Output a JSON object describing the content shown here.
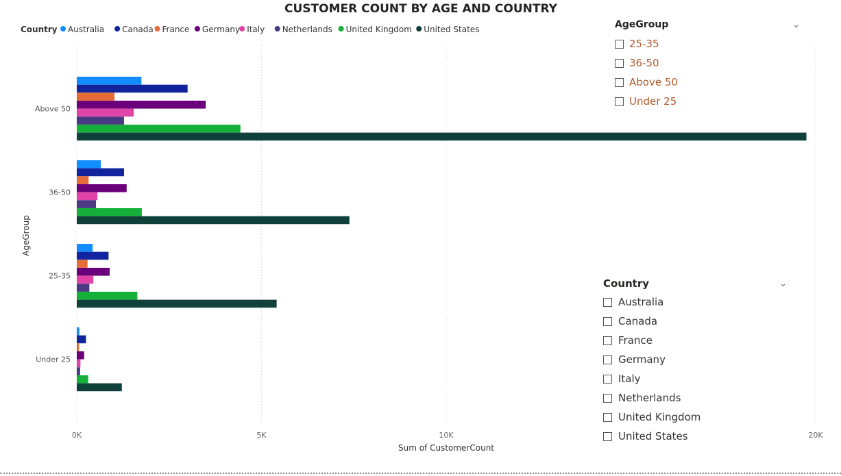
{
  "chart_data": {
    "type": "bar",
    "orientation": "horizontal",
    "title": "CUSTOMER COUNT BY AGE AND COUNTRY",
    "legend_title": "Country",
    "legend_position": "top-left",
    "xlabel": "Sum of CustomerCount",
    "ylabel": "AgeGroup",
    "categories": [
      "Above 50",
      "36-50",
      "25-35",
      "Under 25"
    ],
    "x_ticks": [
      "0K",
      "5K",
      "10K",
      "20K"
    ],
    "x_tick_values": [
      0,
      5000,
      10000,
      20000
    ],
    "xlim": [
      0,
      20000
    ],
    "grid": true,
    "series": [
      {
        "name": "Australia",
        "color": "#118DFF",
        "values": [
          1750,
          650,
          430,
          70
        ]
      },
      {
        "name": "Canada",
        "color": "#12239E",
        "values": [
          3000,
          1280,
          860,
          250
        ]
      },
      {
        "name": "France",
        "color": "#E66C37",
        "values": [
          1020,
          320,
          290,
          60
        ]
      },
      {
        "name": "Germany",
        "color": "#6B007B",
        "values": [
          3490,
          1350,
          890,
          200
        ]
      },
      {
        "name": "Italy",
        "color": "#E044A7",
        "values": [
          1540,
          560,
          450,
          100
        ]
      },
      {
        "name": "Netherlands",
        "color": "#4A3A83",
        "values": [
          1280,
          520,
          340,
          90
        ]
      },
      {
        "name": "United Kingdom",
        "color": "#15B03A",
        "values": [
          4430,
          1760,
          1640,
          310
        ]
      },
      {
        "name": "United States",
        "color": "#0F4039",
        "values": [
          19750,
          7380,
          5410,
          1220
        ]
      }
    ]
  },
  "slicers": {
    "age": {
      "title": "AgeGroup",
      "options": [
        "25-35",
        "36-50",
        "Above 50",
        "Under 25"
      ]
    },
    "country": {
      "title": "Country",
      "options": [
        "Australia",
        "Canada",
        "France",
        "Germany",
        "Italy",
        "Netherlands",
        "United Kingdom",
        "United States"
      ]
    }
  },
  "icons": {
    "dropdown": "chevron-down-icon",
    "checkbox": "checkbox-icon"
  }
}
